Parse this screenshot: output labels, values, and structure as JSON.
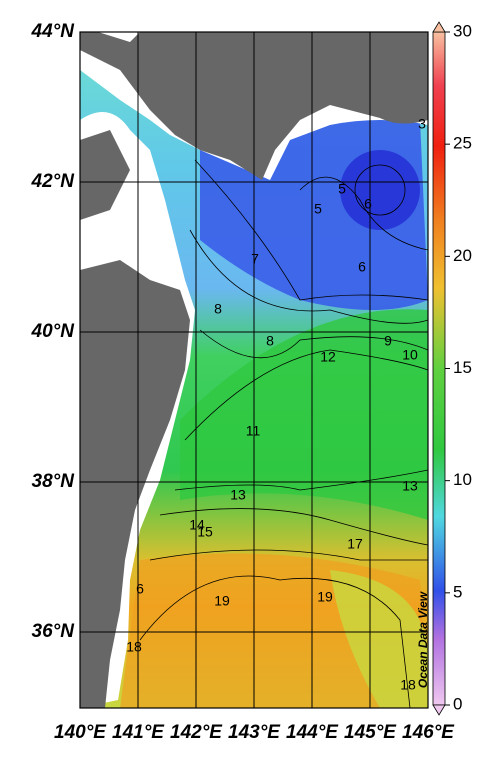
{
  "map": {
    "lat_labels": [
      "44°N",
      "42°N",
      "40°N",
      "38°N",
      "36°N"
    ],
    "lon_labels": [
      "140°E",
      "141°E",
      "142°E",
      "143°E",
      "144°E",
      "145°E",
      "146°E"
    ],
    "colorbar_labels": [
      "30",
      "25",
      "20",
      "15",
      "10",
      "5",
      "0"
    ],
    "watermark": "Ocean Data View",
    "contour_labels": [
      "3",
      "5",
      "6",
      "5",
      "7",
      "6",
      "8",
      "8",
      "9",
      "10",
      "12",
      "11",
      "13",
      "13",
      "14",
      "15",
      "17",
      "6",
      "19",
      "19",
      "18",
      "18"
    ]
  }
}
